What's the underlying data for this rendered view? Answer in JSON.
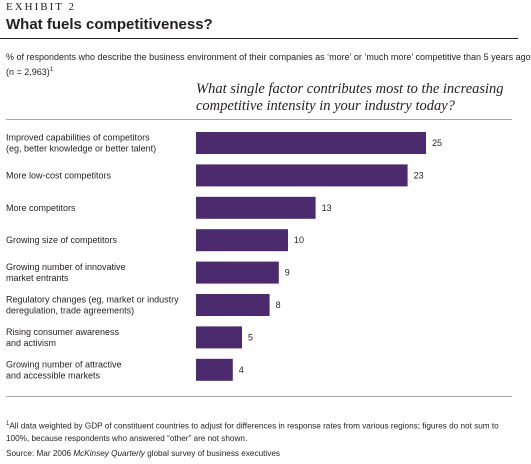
{
  "exhibit": "EXHIBIT 2",
  "title": "What fuels competitiveness?",
  "subtitle_line1": "% of respondents who describe the business environment of their companies as ‘more’ or ‘much more’ competitive than 5 years ago",
  "subtitle_line2": "(n = 2,963)",
  "subtitle_sup": "1",
  "question": "What single factor contributes most to the increasing competitive intensity in your industry today?",
  "footnote_sup": "1",
  "footnote": "All data weighted by GDP of constituent countries to adjust for differences in response rates from various regions; figures do not sum to 100%, because respondents who answered “other” are not shown.",
  "source_prefix": "Source: Mar 2006 ",
  "source_italic": "McKinsey Quarterly",
  "source_suffix": " global survey of business executives",
  "bar_color": "#4b2a6e",
  "chart_data": {
    "type": "bar",
    "orientation": "horizontal",
    "categories": [
      [
        "Improved capabilities of competitors",
        "(eg, better knowledge or better talent)"
      ],
      [
        "More low-cost competitors"
      ],
      [
        "More competitors"
      ],
      [
        "Growing size of competitors"
      ],
      [
        "Growing number of innovative",
        "market entrants"
      ],
      [
        "Regulatory changes (eg, market or industry",
        "deregulation, trade agreements)"
      ],
      [
        "Rising consumer awareness",
        "and activism"
      ],
      [
        "Growing number of attractive",
        "and accessible markets"
      ]
    ],
    "values": [
      25,
      23,
      13,
      10,
      9,
      8,
      5,
      4
    ],
    "title": "What single factor contributes most to the increasing competitive intensity in your industry today?",
    "xlim": [
      0,
      25
    ],
    "grid": false,
    "legend": "none"
  }
}
